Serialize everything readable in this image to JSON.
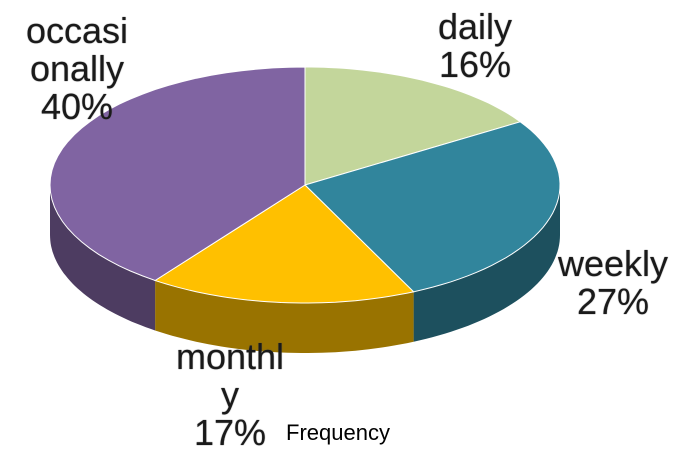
{
  "chart_data": {
    "type": "pie",
    "title": "Frequency",
    "categories": [
      "daily",
      "weekly",
      "monthly",
      "occasionally"
    ],
    "values": [
      16,
      27,
      17,
      40
    ],
    "value_labels": [
      "16%",
      "27%",
      "17%",
      "40%"
    ],
    "colors": [
      "#c3d69b",
      "#31859c",
      "#ffc000",
      "#8064a2"
    ]
  }
}
